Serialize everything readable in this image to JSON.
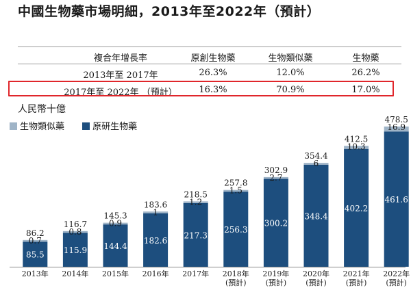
{
  "title": "中國生物藥市場明細，2013年至2022年（預計）",
  "table": {
    "headers": [
      "複合年增長率",
      "原創生物藥",
      "生物類似藥",
      "生物藥"
    ],
    "rows": [
      {
        "period": "2013年至 2017年",
        "original": "26.3%",
        "biosimilar": "12.0%",
        "biologics": "26.2%"
      },
      {
        "period": "2017年至 2022年 （預計）",
        "original": "16.3%",
        "biosimilar": "70.9%",
        "biologics": "17.0%"
      }
    ]
  },
  "unit_label": "人民幣十億",
  "legend": [
    {
      "label": "生物類似藥",
      "color": "#9fb4c7"
    },
    {
      "label": "原研生物藥",
      "color": "#1d4e7e"
    }
  ],
  "chart_data": {
    "type": "bar",
    "stacked": true,
    "categories": [
      [
        "2013年"
      ],
      [
        "2014年"
      ],
      [
        "2015年"
      ],
      [
        "2016年"
      ],
      [
        "2017年"
      ],
      [
        "2018年",
        "(預計)"
      ],
      [
        "2019年",
        "(預計)"
      ],
      [
        "2020年",
        "(預計)"
      ],
      [
        "2021年",
        "(預計)"
      ],
      [
        "2022年",
        "(預計)"
      ]
    ],
    "series": [
      {
        "name": "原研生物藥",
        "color": "#1d4e7e",
        "values": [
          85.5,
          115.9,
          144.4,
          182.6,
          217.3,
          256.3,
          300.2,
          348.4,
          402.2,
          461.6
        ]
      },
      {
        "name": "生物類似藥",
        "color": "#9fb4c7",
        "values": [
          0.7,
          0.8,
          0.9,
          1.0,
          1.2,
          1.5,
          2.7,
          6.0,
          10.3,
          16.9
        ]
      }
    ],
    "totals": [
      86.2,
      116.7,
      145.3,
      183.6,
      218.5,
      257.8,
      302.9,
      354.4,
      412.5,
      478.5
    ],
    "ylim": [
      0,
      478.5
    ],
    "ylabel": "人民幣十億"
  }
}
